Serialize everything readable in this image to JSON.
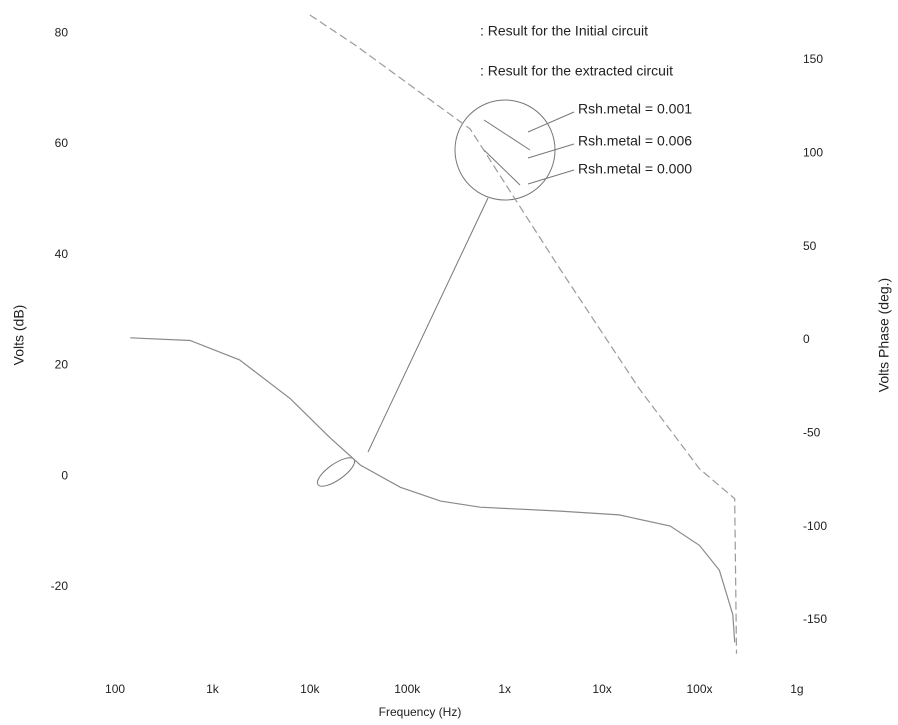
{
  "chart_data": {
    "type": "line",
    "xlabel": "Frequency (Hz)",
    "ylabel": "Volts (dB)",
    "y2label": "Volts Phase (deg.)",
    "xscale": "log",
    "grid": false,
    "xlim": [
      38.8,
      2770000000
    ],
    "xticks": [
      100,
      {
        "value": 1000,
        "label": "1k"
      },
      {
        "value": 10000,
        "label": "10k"
      },
      {
        "value": 100000,
        "label": "100k"
      },
      {
        "value": 1000000,
        "label": "1x"
      },
      {
        "value": 10000000,
        "label": "10x"
      },
      {
        "value": 100000000,
        "label": "100x"
      },
      {
        "value": 1000000000,
        "label": "1g"
      }
    ],
    "ylim": [
      -33.2,
      84.2
    ],
    "yticks": [
      -20,
      0,
      20,
      40,
      60,
      80
    ],
    "y2lim": [
      -171.4,
      176.7
    ],
    "y2ticks": [
      -150,
      -100,
      -50,
      0,
      50,
      100,
      150
    ],
    "series": [
      {
        "color": "#8a8a8a",
        "dash": false,
        "x": [
          143,
          590,
          1900,
          6300,
          16000,
          33000,
          85000,
          220000,
          560000,
          3700000,
          15000000,
          50000000,
          100000000,
          160000000,
          220000000,
          230000000
        ],
        "values": [
          25,
          24.5,
          21,
          14,
          7,
          2,
          -2,
          -4.5,
          -5.6,
          -6.3,
          -7,
          -9,
          -12.5,
          -17,
          -25,
          -30
        ]
      },
      {
        "color": "#9a9a9a",
        "dash": true,
        "axis": "y2",
        "x": [
          10000,
          29000,
          442000,
          3700000,
          24000000,
          100000000,
          230000000,
          240000000
        ],
        "values": [
          174,
          158,
          113,
          38,
          -26,
          -69,
          -85,
          -168
        ]
      }
    ],
    "legend_entries": [
      ": Result for the Initial circuit",
      ": Result for the extracted circuit"
    ],
    "annotations": [
      "Rsh.metal = 0.001",
      "Rsh.metal = 0.006",
      "Rsh.metal = 0.000"
    ]
  }
}
